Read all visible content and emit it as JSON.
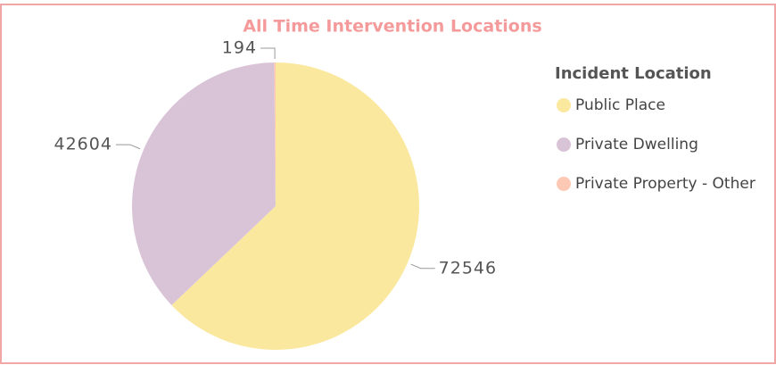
{
  "chart_data": {
    "type": "pie",
    "title": "All Time Intervention Locations",
    "legend_title": "Incident Location",
    "categories": [
      "Public Place",
      "Private Dwelling",
      "Private Property - Other"
    ],
    "values": [
      72546,
      42604,
      194
    ],
    "colors": [
      "#fbe89f",
      "#d9c4d7",
      "#fdc8b4"
    ]
  }
}
